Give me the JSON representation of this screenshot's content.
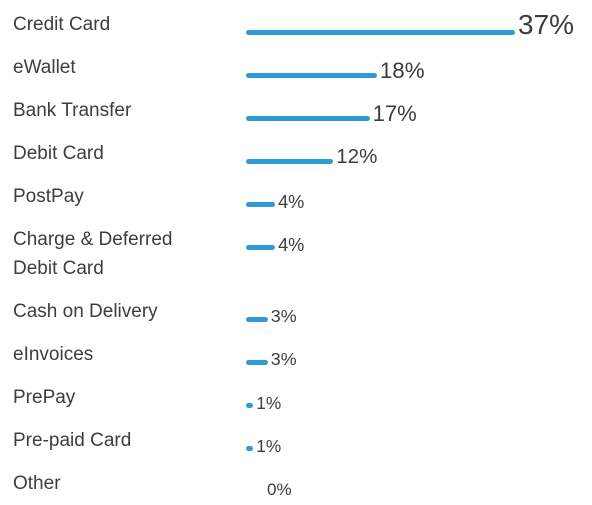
{
  "chart_data": {
    "type": "bar",
    "orientation": "horizontal",
    "color": "#2e9bd6",
    "categories": [
      "Credit Card",
      "eWallet",
      "Bank Transfer",
      "Debit Card",
      "PostPay",
      "Charge & Deferred Debit Card",
      "Cash on Delivery",
      "eInvoices",
      "PrePay",
      "Pre-paid Card",
      "Other"
    ],
    "values": [
      37,
      18,
      17,
      12,
      4,
      4,
      3,
      3,
      1,
      1,
      0
    ],
    "value_labels": [
      "37%",
      "18%",
      "17%",
      "12%",
      "4%",
      "4%",
      "3%",
      "3%",
      "1%",
      "1%",
      "0%"
    ]
  }
}
